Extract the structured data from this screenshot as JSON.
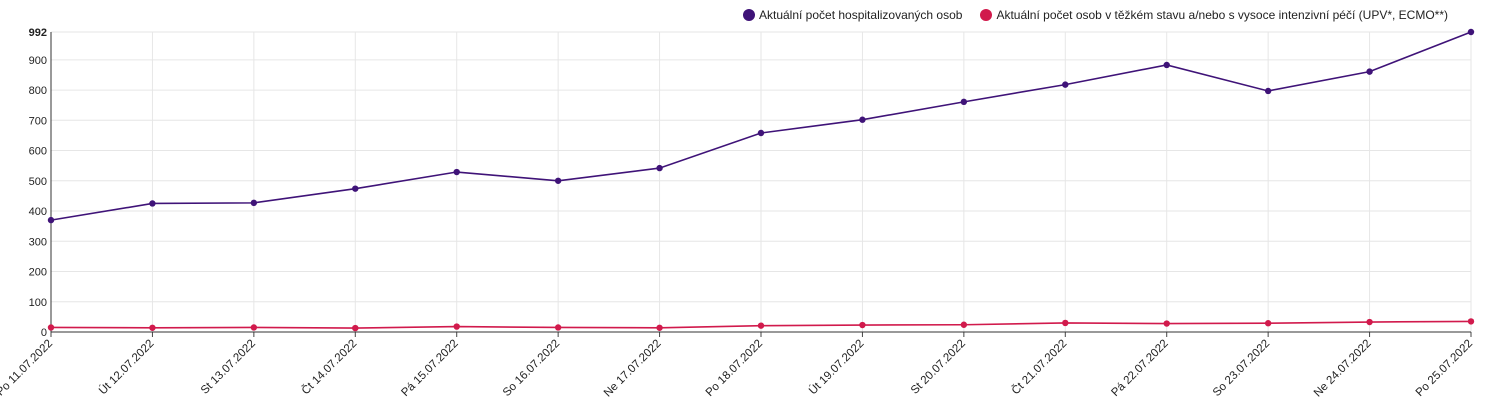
{
  "chart_data": {
    "type": "line",
    "categories": [
      "Po 11.07.2022",
      "Út 12.07.2022",
      "St 13.07.2022",
      "Čt 14.07.2022",
      "Pá 15.07.2022",
      "So 16.07.2022",
      "Ne 17.07.2022",
      "Po 18.07.2022",
      "Út 19.07.2022",
      "St 20.07.2022",
      "Čt 21.07.2022",
      "Pá 22.07.2022",
      "So 23.07.2022",
      "Ne 24.07.2022",
      "Po 25.07.2022"
    ],
    "series": [
      {
        "name": "Aktuální počet hospitalizovaných osob",
        "color": "#3f1378",
        "values": [
          370,
          425,
          427,
          474,
          529,
          500,
          542,
          658,
          702,
          761,
          818,
          883,
          797,
          861,
          992
        ]
      },
      {
        "name": "Aktuální počet osob v těžkém stavu a/nebo s vysoce intenzivní péčí (UPV*, ECMO**)",
        "color": "#d11a4c",
        "values": [
          15,
          14,
          15,
          13,
          18,
          15,
          14,
          21,
          23,
          24,
          30,
          28,
          29,
          33,
          35
        ]
      }
    ],
    "yticks": [
      "0",
      "100",
      "200",
      "300",
      "400",
      "500",
      "600",
      "700",
      "800",
      "900",
      "992"
    ],
    "ylim": [
      0,
      992
    ],
    "grid": true,
    "legend": "top-right"
  }
}
